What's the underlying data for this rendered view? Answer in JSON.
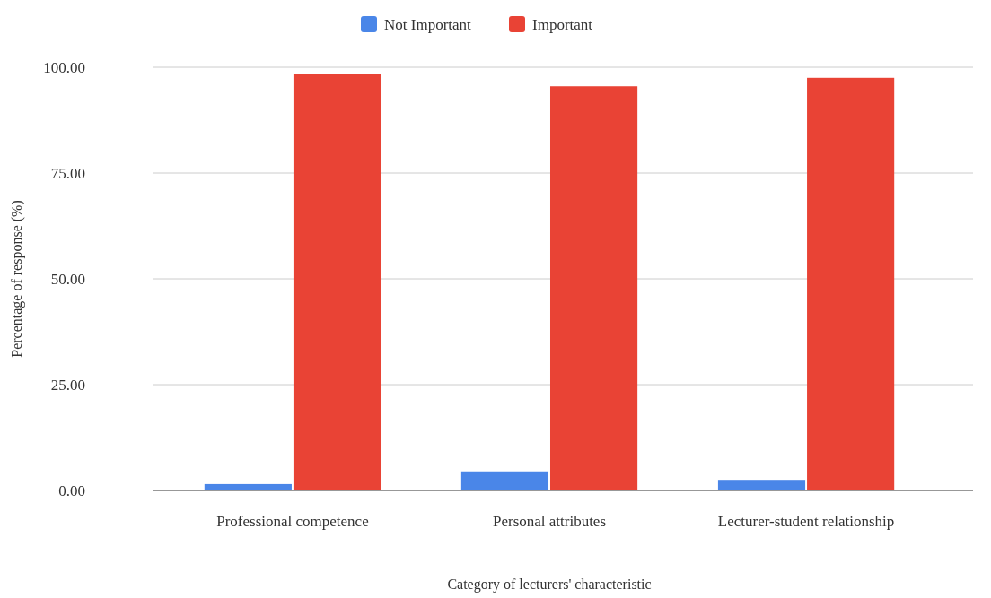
{
  "chart_data": {
    "type": "bar",
    "xlabel": "Category of lecturers' characteristic",
    "ylabel": "Percentage of response (%)",
    "categories": [
      "Professional competence",
      "Personal attributes",
      "Lecturer-student relationship"
    ],
    "series": [
      {
        "name": "Not Important",
        "color": "#4a86e8",
        "values": [
          1.5,
          4.5,
          2.5
        ]
      },
      {
        "name": "Important",
        "color": "#e94335",
        "values": [
          98.5,
          95.5,
          97.5
        ]
      }
    ],
    "ylim": [
      0,
      100
    ],
    "yticks": [
      {
        "value": 0,
        "label": "0.00"
      },
      {
        "value": 25,
        "label": "25.00"
      },
      {
        "value": 50,
        "label": "50.00"
      },
      {
        "value": 75,
        "label": "75.00"
      },
      {
        "value": 100,
        "label": "100.00"
      }
    ],
    "grid": "y",
    "legend": "top"
  }
}
